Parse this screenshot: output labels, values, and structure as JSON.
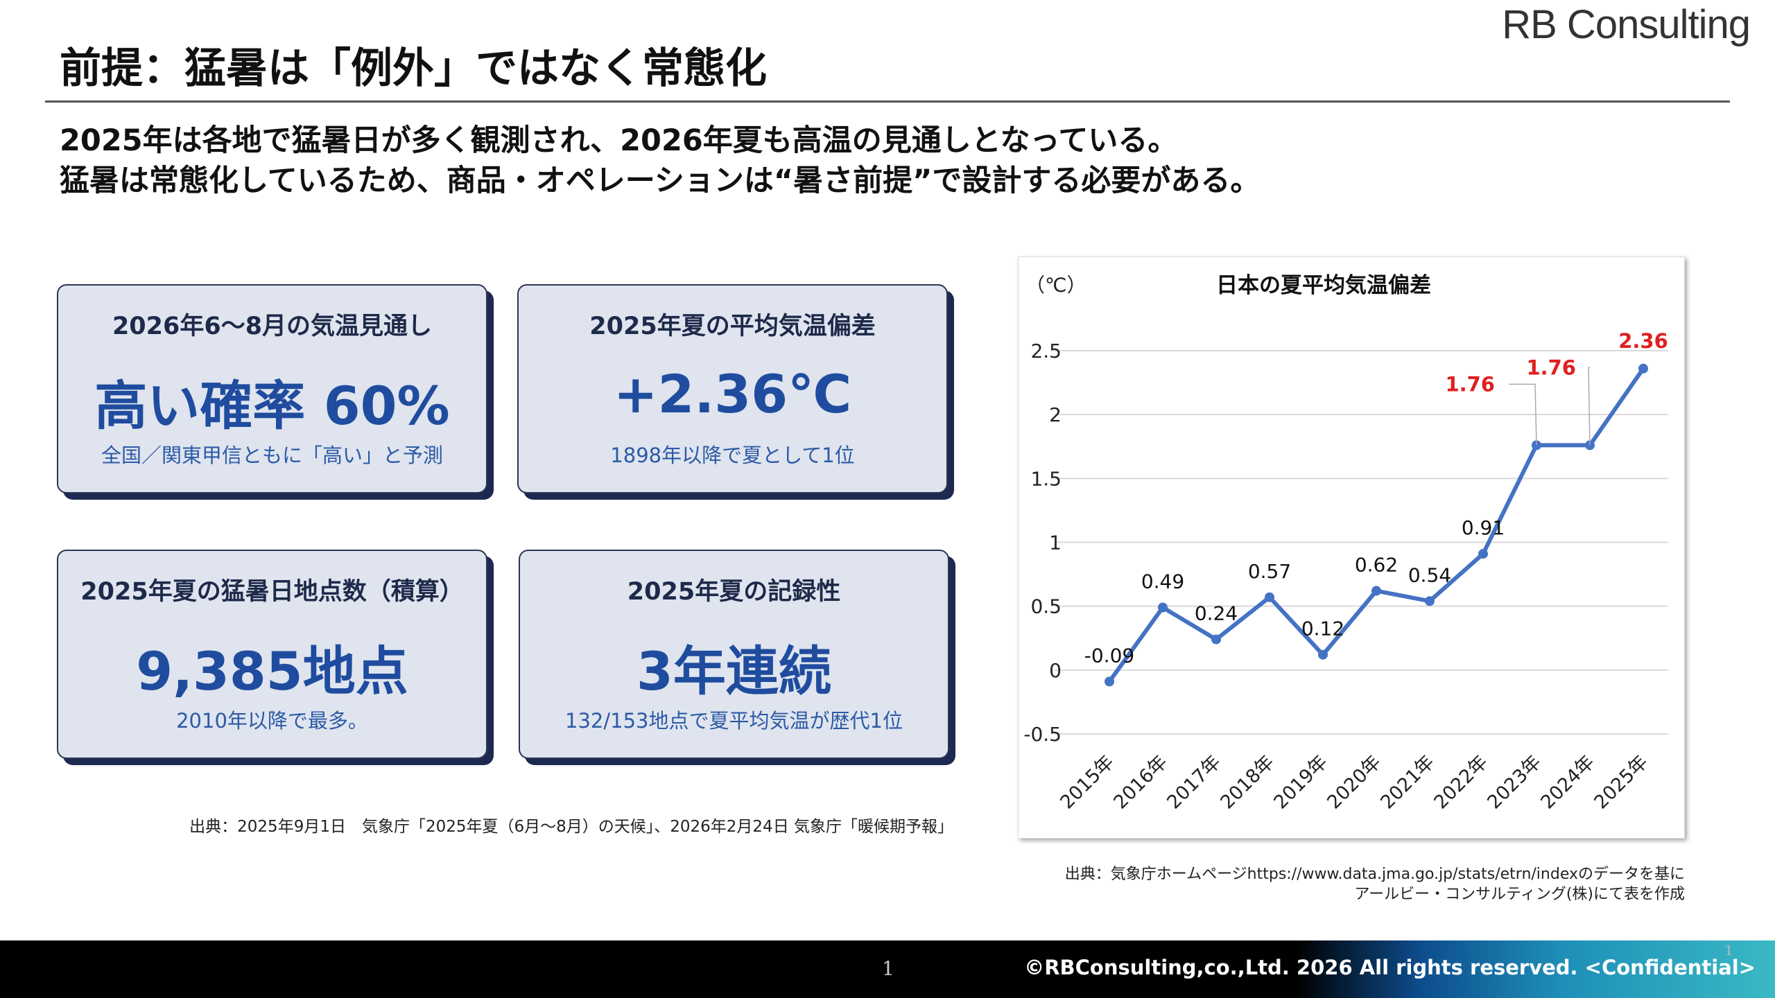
{
  "logo": "RB Consulting",
  "title": "前提：猛暑は「例外」ではなく常態化",
  "lead": [
    "2025年は各地で猛暑日が多く観測され、2026年夏も高温の見通しとなっている。",
    "猛暑は常態化しているため、商品・オペレーションは“暑さ前提”で設計する必要がある。"
  ],
  "cards": [
    {
      "title": "2026年6～8月の気温見通し",
      "value": "高い確率 60%",
      "sub": "全国／関東甲信ともに「高い」と予測"
    },
    {
      "title": "2025年夏の平均気温偏差",
      "value": "+2.36℃",
      "sub": "1898年以降で夏として1位"
    },
    {
      "title": "2025年夏の猛暑日地点数（積算）",
      "value": "9,385地点",
      "sub": "2010年以降で最多。"
    },
    {
      "title": "2025年夏の記録性",
      "value": "3年連続",
      "sub": "132/153地点で夏平均気温が歴代1位"
    }
  ],
  "cards_source": "出典：2025年9月1日　気象庁「2025年夏（6月～8月）の天候」、2026年2月24日 気象庁「暖候期予報」",
  "chart_data": {
    "type": "line",
    "title": "日本の夏平均気温偏差",
    "ylabel": "（℃）",
    "categories": [
      "2015年",
      "2016年",
      "2017年",
      "2018年",
      "2019年",
      "2020年",
      "2021年",
      "2022年",
      "2023年",
      "2024年",
      "2025年"
    ],
    "values": [
      -0.09,
      0.49,
      0.24,
      0.57,
      0.12,
      0.62,
      0.54,
      0.91,
      1.76,
      1.76,
      2.36
    ],
    "labels": [
      "-0.09",
      "0.49",
      "0.24",
      "0.57",
      "0.12",
      "0.62",
      "0.54",
      "0.91",
      "1.76",
      "1.76",
      "2.36"
    ],
    "highlight_indices": [
      8,
      9,
      10
    ],
    "ylim": [
      -0.5,
      2.5
    ],
    "yticks": [
      "-0.5",
      "0",
      "0.5",
      "1",
      "1.5",
      "2",
      "2.5"
    ],
    "grid": true,
    "line_color": "#4472c4",
    "highlight_color": "#e02020"
  },
  "chart_source": [
    "出典：気象庁ホームページhttps://www.data.jma.go.jp/stats/etrn/indexのデータを基に",
    "アールビー・コンサルティング(株)にて表を作成"
  ],
  "footer": {
    "page": "1",
    "page_small": "1",
    "copyright": "©RBConsulting,co.,Ltd. 2026 All rights reserved. <Confidential>"
  }
}
